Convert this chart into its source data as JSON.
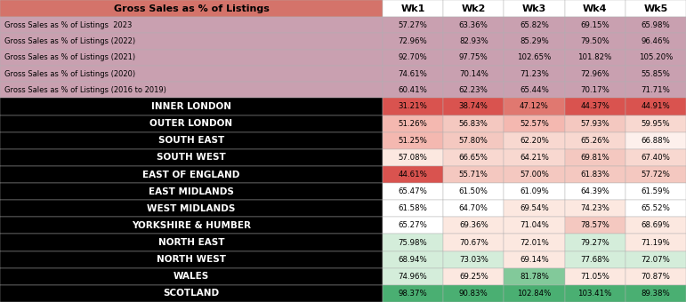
{
  "title": "Gross Sales as % of Listings",
  "columns": [
    "Wk1",
    "Wk2",
    "Wk3",
    "Wk4",
    "Wk5"
  ],
  "header_rows": [
    {
      "label": "Gross Sales as % of Listings  2023",
      "values": [
        "57.27%",
        "63.36%",
        "65.82%",
        "69.15%",
        "65.98%"
      ]
    },
    {
      "label": "Gross Sales as % of Listings (2022)",
      "values": [
        "72.96%",
        "82.93%",
        "85.29%",
        "79.50%",
        "96.46%"
      ]
    },
    {
      "label": "Gross Sales as % of Listings (2021)",
      "values": [
        "92.70%",
        "97.75%",
        "102.65%",
        "101.82%",
        "105.20%"
      ]
    },
    {
      "label": "Gross Sales as % of Listings (2020)",
      "values": [
        "74.61%",
        "70.14%",
        "71.23%",
        "72.96%",
        "55.85%"
      ]
    },
    {
      "label": "Gross Sales as % of Listings (2016 to 2019)",
      "values": [
        "60.41%",
        "62.23%",
        "65.44%",
        "70.17%",
        "71.71%"
      ]
    }
  ],
  "region_rows": [
    {
      "label": "INNER LONDON",
      "values": [
        "31.21%",
        "38.74%",
        "47.12%",
        "44.37%",
        "44.91%"
      ]
    },
    {
      "label": "OUTER LONDON",
      "values": [
        "51.26%",
        "56.83%",
        "52.57%",
        "57.93%",
        "59.95%"
      ]
    },
    {
      "label": "SOUTH EAST",
      "values": [
        "51.25%",
        "57.80%",
        "62.20%",
        "65.26%",
        "66.88%"
      ]
    },
    {
      "label": "SOUTH WEST",
      "values": [
        "57.08%",
        "66.65%",
        "64.21%",
        "69.81%",
        "67.40%"
      ]
    },
    {
      "label": "EAST OF ENGLAND",
      "values": [
        "44.61%",
        "55.71%",
        "57.00%",
        "61.83%",
        "57.72%"
      ]
    },
    {
      "label": "EAST MIDLANDS",
      "values": [
        "65.47%",
        "61.50%",
        "61.09%",
        "64.39%",
        "61.59%"
      ]
    },
    {
      "label": "WEST MIDLANDS",
      "values": [
        "61.58%",
        "64.70%",
        "69.54%",
        "74.23%",
        "65.52%"
      ]
    },
    {
      "label": "YORKSHIRE & HUMBER",
      "values": [
        "65.27%",
        "69.36%",
        "71.04%",
        "78.57%",
        "68.69%"
      ]
    },
    {
      "label": "NORTH EAST",
      "values": [
        "75.98%",
        "70.67%",
        "72.01%",
        "79.27%",
        "71.19%"
      ]
    },
    {
      "label": "NORTH WEST",
      "values": [
        "68.94%",
        "73.03%",
        "69.14%",
        "77.68%",
        "72.07%"
      ]
    },
    {
      "label": "WALES",
      "values": [
        "74.96%",
        "69.25%",
        "81.78%",
        "71.05%",
        "70.87%"
      ]
    },
    {
      "label": "SCOTLAND",
      "values": [
        "98.37%",
        "90.83%",
        "102.84%",
        "103.41%",
        "89.38%"
      ]
    }
  ],
  "title_bg": "#d4736a",
  "title_text_color": "#000000",
  "header_row_bg": "#c9a0b0",
  "header_row_text": "#000000",
  "region_label_bg": "#000000",
  "region_label_text": "#ffffff",
  "cell_colors": {
    "INNER LONDON": [
      "#d9534f",
      "#d9534f",
      "#e07870",
      "#d9534f",
      "#d9534f"
    ],
    "OUTER LONDON": [
      "#f4b8b0",
      "#f4c8c0",
      "#f4b8b0",
      "#f4c8c0",
      "#f8d8d0"
    ],
    "SOUTH EAST": [
      "#f4b8b0",
      "#f4c8c0",
      "#f8d8d0",
      "#f8d8d0",
      "#fdf0ec"
    ],
    "SOUTH WEST": [
      "#fce8e0",
      "#f8d8d0",
      "#f8d8d0",
      "#f4c8c0",
      "#f8d8d0"
    ],
    "EAST OF ENGLAND": [
      "#d9534f",
      "#f4c8c0",
      "#f4c8c0",
      "#f4c8c0",
      "#f4c8c0"
    ],
    "EAST MIDLANDS": [
      "#ffffff",
      "#ffffff",
      "#ffffff",
      "#ffffff",
      "#ffffff"
    ],
    "WEST MIDLANDS": [
      "#ffffff",
      "#ffffff",
      "#fce8e0",
      "#fce8e0",
      "#ffffff"
    ],
    "YORKSHIRE & HUMBER": [
      "#ffffff",
      "#fce8e0",
      "#fce8e0",
      "#f4c8c0",
      "#fce8e0"
    ],
    "NORTH EAST": [
      "#d4edda",
      "#fce8e0",
      "#fce8e0",
      "#d4edda",
      "#fce8e0"
    ],
    "NORTH WEST": [
      "#d4edda",
      "#d4edda",
      "#fce8e0",
      "#d4edda",
      "#d4edda"
    ],
    "WALES": [
      "#d4edda",
      "#fce8e0",
      "#82c99a",
      "#fce8e0",
      "#fce8e0"
    ],
    "SCOTLAND": [
      "#4aaf72",
      "#4aaf72",
      "#4aaf72",
      "#4aaf72",
      "#4aaf72"
    ]
  }
}
